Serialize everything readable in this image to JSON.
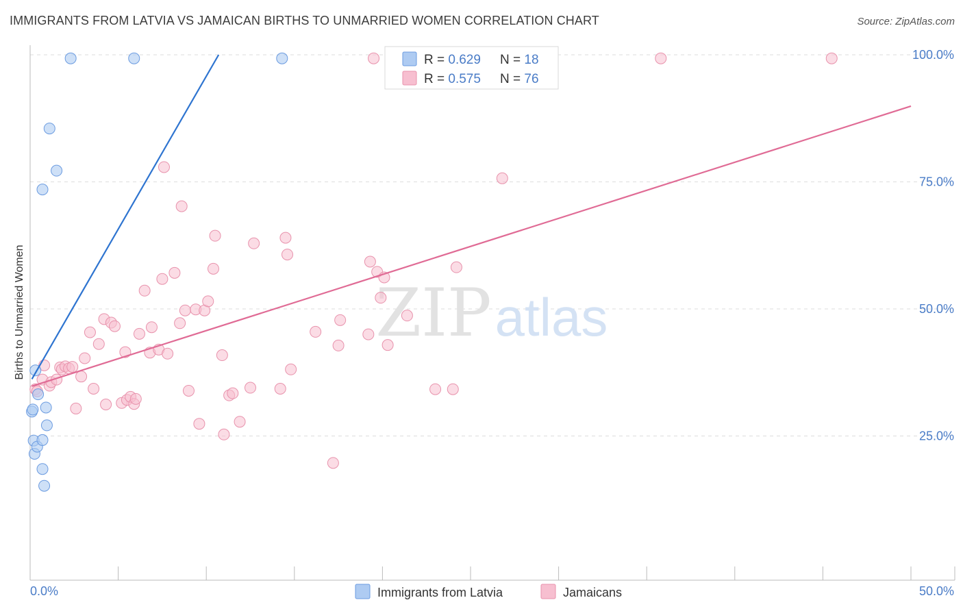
{
  "title": "IMMIGRANTS FROM LATVIA VS JAMAICAN BIRTHS TO UNMARRIED WOMEN CORRELATION CHART",
  "source": "Source: ZipAtlas.com",
  "watermark": {
    "zip": "ZIP",
    "atlas": "atlas"
  },
  "colors": {
    "latvia_fill": "#aecbf2",
    "latvia_stroke": "#6b9be0",
    "latvia_line": "#2e74d0",
    "jamaica_fill": "#f7bfd0",
    "jamaica_stroke": "#e892ac",
    "jamaica_line": "#e06b95",
    "tick_label": "#4a7cc7",
    "grid": "#dddddd"
  },
  "stats_legend": {
    "rows": [
      {
        "r_label": "R = ",
        "r_value": "0.629",
        "n_label": "N = ",
        "n_value": "18"
      },
      {
        "r_label": "R = ",
        "r_value": "0.575",
        "n_label": "N = ",
        "n_value": "76"
      }
    ]
  },
  "chart_data": {
    "type": "scatter",
    "title": "IMMIGRANTS FROM LATVIA VS JAMAICAN BIRTHS TO UNMARRIED WOMEN CORRELATION CHART",
    "xlabel": "",
    "ylabel": "Births to Unmarried Women",
    "xlim": [
      0,
      50
    ],
    "ylim": [
      0,
      100
    ],
    "x_tick_labels": [
      "0.0%",
      "50.0%"
    ],
    "y_tick_labels": [
      "25.0%",
      "50.0%",
      "75.0%",
      "100.0%"
    ],
    "y_ticks": [
      25,
      50,
      75,
      100
    ],
    "grid": true,
    "legend_position": "bottom",
    "series": [
      {
        "name": "Immigrants from Latvia",
        "R": 0.629,
        "N": 18,
        "trend": {
          "x": [
            0.1,
            10.7
          ],
          "y": [
            36.2,
            100
          ]
        },
        "points": [
          [
            0.1,
            29.8
          ],
          [
            0.2,
            24.1
          ],
          [
            0.25,
            21.5
          ],
          [
            0.3,
            37.9
          ],
          [
            0.4,
            22.9
          ],
          [
            0.45,
            33.2
          ],
          [
            0.7,
            24.2
          ],
          [
            0.7,
            18.5
          ],
          [
            0.8,
            15.2
          ],
          [
            0.9,
            30.6
          ],
          [
            0.95,
            27.1
          ],
          [
            1.1,
            85.5
          ],
          [
            1.5,
            77.2
          ],
          [
            0.7,
            73.5
          ],
          [
            2.3,
            99.3
          ],
          [
            5.9,
            99.3
          ],
          [
            14.3,
            99.3
          ],
          [
            0.15,
            30.2
          ]
        ]
      },
      {
        "name": "Jamaicans",
        "R": 0.575,
        "N": 76,
        "trend": {
          "x": [
            0.1,
            50
          ],
          "y": [
            34.8,
            89.9
          ]
        },
        "points": [
          [
            0.3,
            34.2
          ],
          [
            0.4,
            33.8
          ],
          [
            0.7,
            36.1
          ],
          [
            0.8,
            38.9
          ],
          [
            1.1,
            34.9
          ],
          [
            1.2,
            35.6
          ],
          [
            1.5,
            36.1
          ],
          [
            1.7,
            38.5
          ],
          [
            1.8,
            38.1
          ],
          [
            2.0,
            38.7
          ],
          [
            2.2,
            38.3
          ],
          [
            2.4,
            38.6
          ],
          [
            2.6,
            30.4
          ],
          [
            2.9,
            36.7
          ],
          [
            3.1,
            40.3
          ],
          [
            3.4,
            45.4
          ],
          [
            3.6,
            34.3
          ],
          [
            3.9,
            43.1
          ],
          [
            4.2,
            48.0
          ],
          [
            4.3,
            31.2
          ],
          [
            4.6,
            47.3
          ],
          [
            4.8,
            46.6
          ],
          [
            5.2,
            31.5
          ],
          [
            5.4,
            41.5
          ],
          [
            5.5,
            32.1
          ],
          [
            5.7,
            32.7
          ],
          [
            5.9,
            31.3
          ],
          [
            6.0,
            32.3
          ],
          [
            6.2,
            45.1
          ],
          [
            6.5,
            53.6
          ],
          [
            6.8,
            41.4
          ],
          [
            6.9,
            46.4
          ],
          [
            7.3,
            42.0
          ],
          [
            7.5,
            55.9
          ],
          [
            7.6,
            77.9
          ],
          [
            7.8,
            41.2
          ],
          [
            8.2,
            57.1
          ],
          [
            8.5,
            47.2
          ],
          [
            8.6,
            70.2
          ],
          [
            8.8,
            49.7
          ],
          [
            9.0,
            33.9
          ],
          [
            9.4,
            49.9
          ],
          [
            9.6,
            27.4
          ],
          [
            9.9,
            49.7
          ],
          [
            10.1,
            51.5
          ],
          [
            10.4,
            57.9
          ],
          [
            10.5,
            64.4
          ],
          [
            10.9,
            40.9
          ],
          [
            11.0,
            25.3
          ],
          [
            11.3,
            33.0
          ],
          [
            11.5,
            33.4
          ],
          [
            11.9,
            27.8
          ],
          [
            12.5,
            34.5
          ],
          [
            12.7,
            62.9
          ],
          [
            14.2,
            34.3
          ],
          [
            14.5,
            64.0
          ],
          [
            14.6,
            60.7
          ],
          [
            14.8,
            38.1
          ],
          [
            16.2,
            45.5
          ],
          [
            17.2,
            19.7
          ],
          [
            17.5,
            42.8
          ],
          [
            17.6,
            47.8
          ],
          [
            19.2,
            45.0
          ],
          [
            19.3,
            59.3
          ],
          [
            19.5,
            99.3
          ],
          [
            19.7,
            57.3
          ],
          [
            19.9,
            52.2
          ],
          [
            20.1,
            56.2
          ],
          [
            20.3,
            42.9
          ],
          [
            21.4,
            48.7
          ],
          [
            23.0,
            34.2
          ],
          [
            24.0,
            34.2
          ],
          [
            24.2,
            58.2
          ],
          [
            26.8,
            75.7
          ],
          [
            35.8,
            99.3
          ],
          [
            45.5,
            99.3
          ]
        ]
      }
    ]
  }
}
